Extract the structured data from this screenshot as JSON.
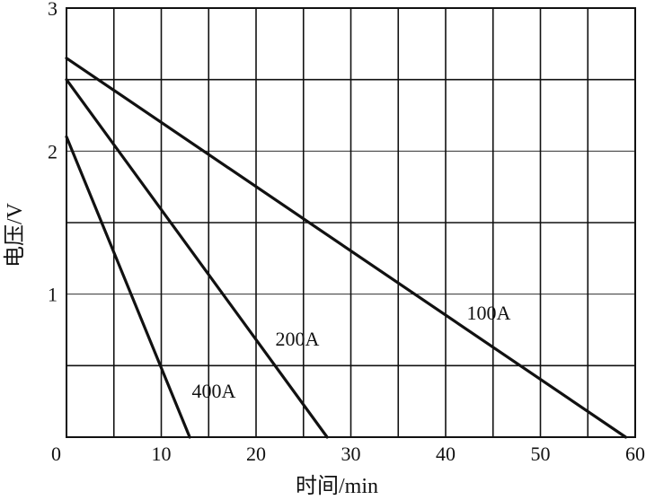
{
  "chart_data": {
    "type": "line",
    "title": "",
    "xlabel": "时间/min",
    "ylabel": "电压/V",
    "xlim": [
      0,
      60
    ],
    "ylim": [
      0,
      3
    ],
    "x_ticks": [
      {
        "value": 0,
        "label": "0"
      },
      {
        "value": 10,
        "label": "10"
      },
      {
        "value": 20,
        "label": "20"
      },
      {
        "value": 30,
        "label": "30"
      },
      {
        "value": 40,
        "label": "40"
      },
      {
        "value": 50,
        "label": "50"
      },
      {
        "value": 60,
        "label": "60"
      }
    ],
    "y_ticks": [
      {
        "value": 1,
        "label": "1"
      },
      {
        "value": 2,
        "label": "2"
      },
      {
        "value": 3,
        "label": "3"
      }
    ],
    "grid": true,
    "legend": "none",
    "colors": {
      "line": "#111111",
      "grid": "#111111",
      "background": "#ffffff"
    },
    "series": [
      {
        "name": "100A",
        "x": [
          0,
          59
        ],
        "y": [
          2.65,
          0
        ]
      },
      {
        "name": "200A",
        "x": [
          0,
          27.5
        ],
        "y": [
          2.5,
          0
        ]
      },
      {
        "name": "400A",
        "x": [
          0,
          13
        ],
        "y": [
          2.1,
          0
        ]
      }
    ]
  }
}
